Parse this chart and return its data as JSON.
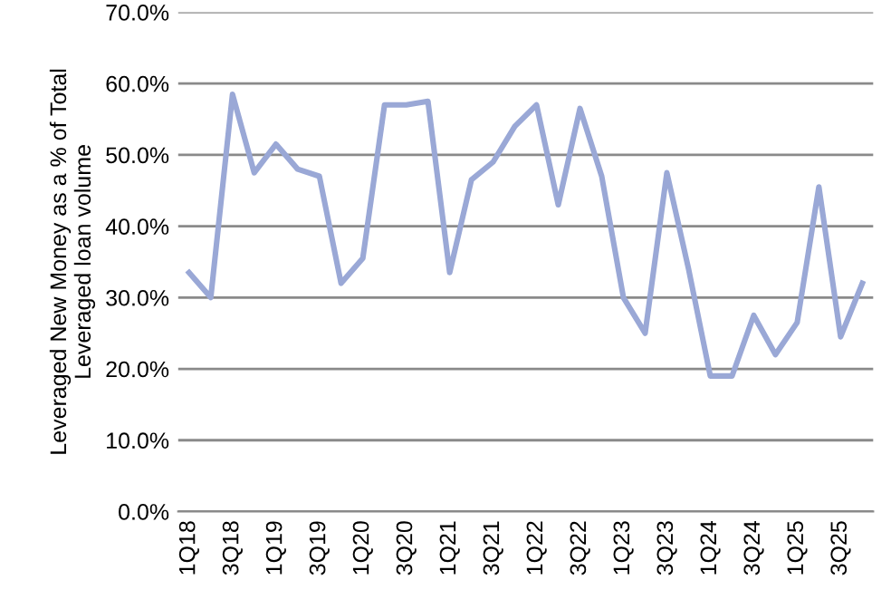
{
  "chart_data": {
    "type": "line",
    "ylabel": "Leveraged New Money as a % of Total\nLeveraged loan volume",
    "categories": [
      "1Q18",
      null,
      "3Q18",
      null,
      "1Q19",
      null,
      "3Q19",
      null,
      "1Q20",
      null,
      "3Q20",
      null,
      "1Q21",
      null,
      "3Q21",
      null,
      "1Q22",
      null,
      "3Q22",
      null,
      "1Q23",
      null,
      "3Q23",
      null,
      "1Q24",
      null,
      "3Q24",
      null,
      "1Q25",
      null,
      "3Q25",
      null
    ],
    "series": [
      {
        "color": "#9aa8d6",
        "values": [
          33.5,
          30,
          58.5,
          47.5,
          51.5,
          48,
          47,
          32,
          35.5,
          57,
          57,
          57.5,
          33.5,
          46.5,
          49,
          54,
          57,
          43,
          56.5,
          47,
          30,
          25,
          47.5,
          34,
          19,
          19,
          27.5,
          22,
          26.5,
          45.5,
          24.5,
          32
        ]
      }
    ],
    "ylim": [
      0,
      70
    ],
    "yticks": [
      {
        "value": 0,
        "label": "0.0%"
      },
      {
        "value": 10,
        "label": "10.0%"
      },
      {
        "value": 20,
        "label": "20.0%"
      },
      {
        "value": 30,
        "label": "30.0%"
      },
      {
        "value": 40,
        "label": "40.0%"
      },
      {
        "value": 50,
        "label": "50.0%"
      },
      {
        "value": 60,
        "label": "60.0%"
      },
      {
        "value": 70,
        "label": "70.0%"
      }
    ],
    "grid": "y",
    "marker": "none",
    "line_style": "solid",
    "legend": false
  }
}
